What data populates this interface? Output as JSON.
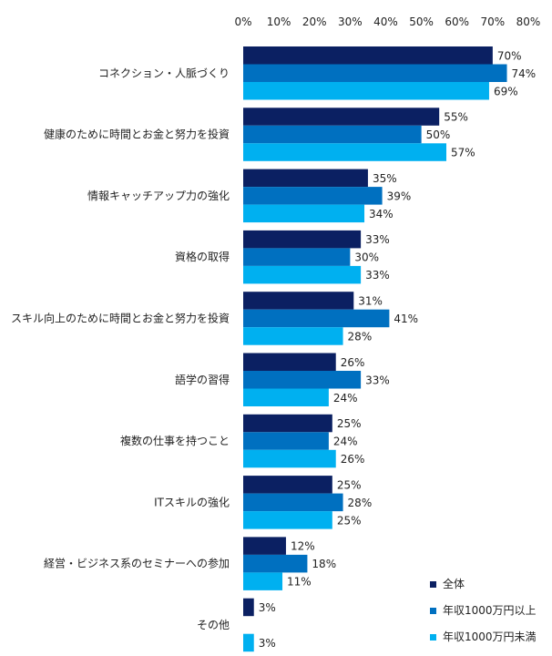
{
  "chart_data": {
    "type": "bar",
    "orientation": "horizontal",
    "x_axis_ticks": [
      "0%",
      "10%",
      "20%",
      "30%",
      "40%",
      "50%",
      "60%",
      "70%",
      "80%"
    ],
    "xlim": [
      0,
      80
    ],
    "grid": false,
    "legend_position": "bottom-right",
    "value_suffix": "%",
    "categories": [
      "コネクション・人脈づくり",
      "健康のために時間とお金と努力を投資",
      "情報キャッチアップ力の強化",
      "資格の取得",
      "スキル向上のために時間とお金と努力を投資",
      "語学の習得",
      "複数の仕事を持つこと",
      "ITスキルの強化",
      "経営・ビジネス系のセミナーへの参加",
      "その他"
    ],
    "series": [
      {
        "name": "全体",
        "color": "#0b2062",
        "values": [
          70,
          55,
          35,
          33,
          31,
          26,
          25,
          25,
          12,
          3
        ]
      },
      {
        "name": "年収1000万円以上",
        "color": "#0070c0",
        "values": [
          74,
          50,
          39,
          30,
          41,
          33,
          24,
          28,
          18,
          null
        ]
      },
      {
        "name": "年収1000万円未満",
        "color": "#00b0f0",
        "values": [
          69,
          57,
          34,
          33,
          28,
          24,
          26,
          25,
          11,
          3
        ]
      }
    ]
  }
}
